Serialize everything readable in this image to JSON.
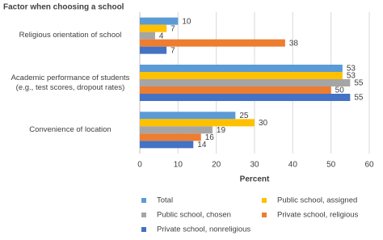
{
  "chart_data": {
    "type": "bar",
    "orientation": "horizontal",
    "title": "Factor when choosing a school",
    "x_label": "Percent",
    "categories": [
      "Religious orientation of school",
      "Academic performance of students\n(e.g., test scores, dropout rates)",
      "Convenience of location"
    ],
    "series": [
      {
        "name": "Total",
        "color": "#5b9bd5",
        "values": [
          10,
          53,
          25
        ]
      },
      {
        "name": "Public school, assigned",
        "color": "#ffc000",
        "values": [
          7,
          53,
          30
        ]
      },
      {
        "name": "Public school, chosen",
        "color": "#a5a5a5",
        "values": [
          4,
          55,
          19
        ]
      },
      {
        "name": "Private school, religious",
        "color": "#ed7d31",
        "values": [
          38,
          50,
          16
        ]
      },
      {
        "name": "Private school, nonreligious",
        "color": "#4472c4",
        "values": [
          7,
          55,
          14
        ]
      }
    ],
    "xlim": [
      0,
      60
    ],
    "xticks": [
      0,
      10,
      20,
      30,
      40,
      50,
      60
    ],
    "grid": true,
    "legend": "bottom"
  }
}
